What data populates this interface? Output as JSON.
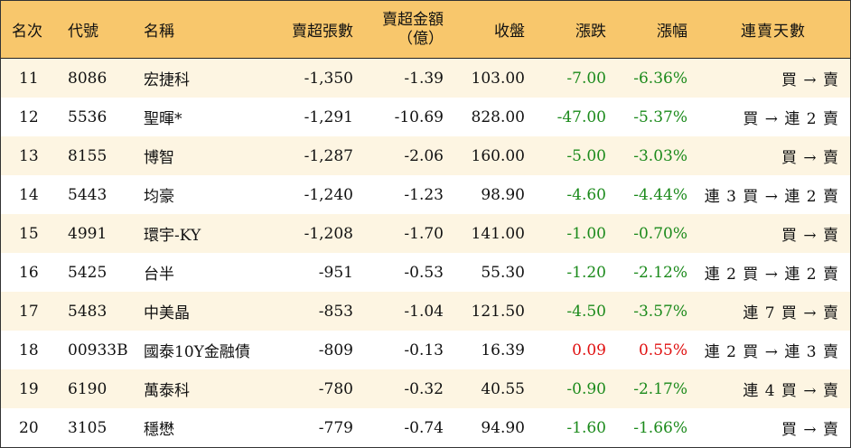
{
  "colors": {
    "header_bg": "#f8c76c",
    "row_alt_bg": "#fdf5e2",
    "down": "#1b8a1b",
    "up": "#e01010"
  },
  "header": {
    "rank": "名次",
    "code": "代號",
    "name": "名稱",
    "net_sell_lots": "賣超張數",
    "net_sell_amount_line1": "賣超金額",
    "net_sell_amount_line2": "（億）",
    "close": "收盤",
    "change": "漲跌",
    "change_pct": "漲幅",
    "streak": "連賣天數"
  },
  "rows": [
    {
      "rank": "11",
      "code": "8086",
      "name": "宏捷科",
      "lots": "-1,350",
      "amount": "-1.39",
      "close": "103.00",
      "change": "-7.00",
      "pct": "-6.36%",
      "dir": "down",
      "streak": "買 → 賣"
    },
    {
      "rank": "12",
      "code": "5536",
      "name": "聖暉*",
      "lots": "-1,291",
      "amount": "-10.69",
      "close": "828.00",
      "change": "-47.00",
      "pct": "-5.37%",
      "dir": "down",
      "streak": "買 → 連 2 賣"
    },
    {
      "rank": "13",
      "code": "8155",
      "name": "博智",
      "lots": "-1,287",
      "amount": "-2.06",
      "close": "160.00",
      "change": "-5.00",
      "pct": "-3.03%",
      "dir": "down",
      "streak": "買 → 賣"
    },
    {
      "rank": "14",
      "code": "5443",
      "name": "均豪",
      "lots": "-1,240",
      "amount": "-1.23",
      "close": "98.90",
      "change": "-4.60",
      "pct": "-4.44%",
      "dir": "down",
      "streak": "連 3 買 → 連 2 賣"
    },
    {
      "rank": "15",
      "code": "4991",
      "name": "環宇-KY",
      "lots": "-1,208",
      "amount": "-1.70",
      "close": "141.00",
      "change": "-1.00",
      "pct": "-0.70%",
      "dir": "down",
      "streak": "買 → 賣"
    },
    {
      "rank": "16",
      "code": "5425",
      "name": "台半",
      "lots": "-951",
      "amount": "-0.53",
      "close": "55.30",
      "change": "-1.20",
      "pct": "-2.12%",
      "dir": "down",
      "streak": "連 2 買 → 連 2 賣"
    },
    {
      "rank": "17",
      "code": "5483",
      "name": "中美晶",
      "lots": "-853",
      "amount": "-1.04",
      "close": "121.50",
      "change": "-4.50",
      "pct": "-3.57%",
      "dir": "down",
      "streak": "連 7 買 → 賣"
    },
    {
      "rank": "18",
      "code": "00933B",
      "name": "國泰10Y金融債",
      "lots": "-809",
      "amount": "-0.13",
      "close": "16.39",
      "change": "0.09",
      "pct": "0.55%",
      "dir": "up",
      "streak": "連 2 買 → 連 3 賣"
    },
    {
      "rank": "19",
      "code": "6190",
      "name": "萬泰科",
      "lots": "-780",
      "amount": "-0.32",
      "close": "40.55",
      "change": "-0.90",
      "pct": "-2.17%",
      "dir": "down",
      "streak": "連 4 買 → 賣"
    },
    {
      "rank": "20",
      "code": "3105",
      "name": "穩懋",
      "lots": "-779",
      "amount": "-0.74",
      "close": "94.90",
      "change": "-1.60",
      "pct": "-1.66%",
      "dir": "down",
      "streak": "買 → 賣"
    }
  ]
}
